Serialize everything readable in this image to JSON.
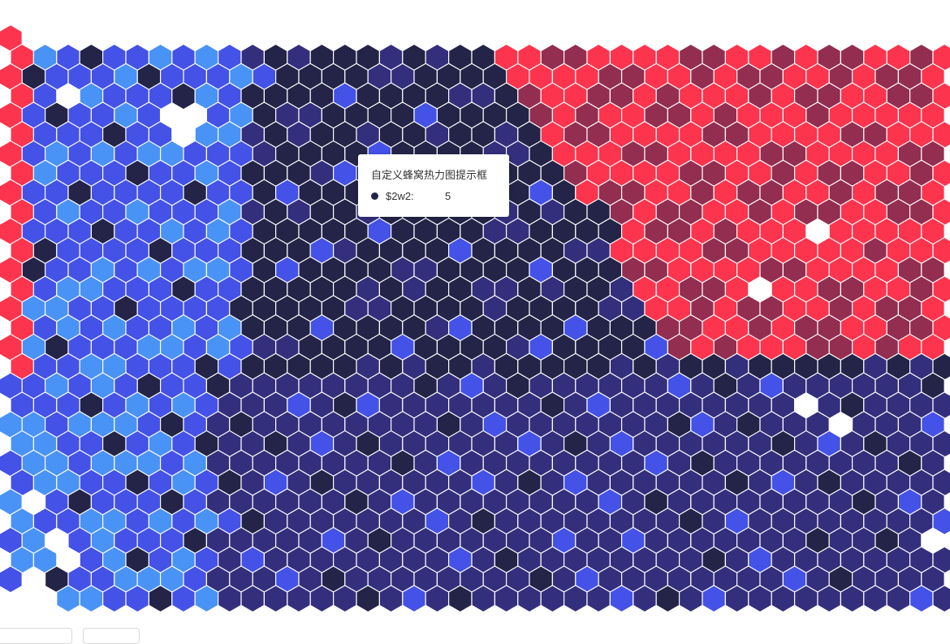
{
  "chart_data": {
    "type": "heatmap",
    "shape": "hexbin",
    "palette": [
      "#4a93f6",
      "#4452e8",
      "#342f7c",
      "#232447",
      "#932e50",
      "#fd344d"
    ],
    "tooltip": {
      "title": "自定义蜂窝热力图提示框",
      "key": "$2w2:",
      "value": "5",
      "marker_color": "#232447"
    }
  }
}
